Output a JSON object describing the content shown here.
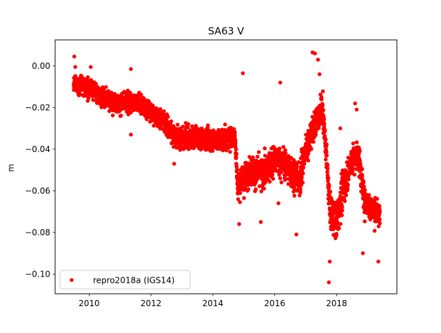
{
  "chart_data": {
    "type": "scatter",
    "title": "SA63 V",
    "xlabel": "",
    "ylabel": "m",
    "xlim": [
      2008.9,
      2019.95
    ],
    "ylim": [
      -0.1095,
      0.0125
    ],
    "xticks": [
      2010,
      2012,
      2014,
      2016,
      2018
    ],
    "xtick_labels": [
      "2010",
      "2012",
      "2014",
      "2016",
      "2018"
    ],
    "yticks": [
      0.0,
      -0.02,
      -0.04,
      -0.06,
      -0.08,
      -0.1
    ],
    "ytick_labels": [
      "0.00",
      "−0.02",
      "−0.04",
      "−0.06",
      "−0.08",
      "−0.10"
    ],
    "grid": false,
    "legend_position": "lower-left",
    "series": [
      {
        "name": "repro2018a (IGS14)",
        "color": "#ff0000",
        "marker": "circle",
        "trend_x": [
          2009.5,
          2010.0,
          2010.5,
          2011.0,
          2011.5,
          2012.0,
          2012.4,
          2012.8,
          2013.5,
          2014.2,
          2014.72,
          2014.8,
          2015.2,
          2015.6,
          2016.0,
          2016.4,
          2016.8,
          2017.0,
          2017.3,
          2017.55,
          2017.8,
          2018.0,
          2018.2,
          2018.5,
          2018.7,
          2018.9,
          2019.1,
          2019.4
        ],
        "trend_y": [
          -0.0085,
          -0.0105,
          -0.015,
          -0.018,
          -0.017,
          -0.022,
          -0.026,
          -0.034,
          -0.034,
          -0.036,
          -0.034,
          -0.058,
          -0.05,
          -0.052,
          -0.045,
          -0.048,
          -0.055,
          -0.04,
          -0.028,
          -0.02,
          -0.07,
          -0.075,
          -0.06,
          -0.045,
          -0.042,
          -0.065,
          -0.068,
          -0.072
        ],
        "noise_sd": [
          0.004,
          0.0045,
          0.0045,
          0.0045,
          0.0045,
          0.0045,
          0.0045,
          0.005,
          0.005,
          0.005,
          0.005,
          0.006,
          0.007,
          0.007,
          0.007,
          0.007,
          0.008,
          0.007,
          0.006,
          0.007,
          0.008,
          0.008,
          0.008,
          0.007,
          0.007,
          0.007,
          0.006,
          0.006
        ],
        "point_count": 3400,
        "outliers": [
          [
            2009.52,
            0.0045
          ],
          [
            2009.55,
            -0.0005
          ],
          [
            2010.05,
            -0.0005
          ],
          [
            2011.35,
            -0.0015
          ],
          [
            2014.97,
            -0.0035
          ],
          [
            2016.18,
            -0.008
          ],
          [
            2017.22,
            0.0065
          ],
          [
            2017.3,
            0.006
          ],
          [
            2017.4,
            0.003
          ],
          [
            2017.45,
            -0.004
          ],
          [
            2017.75,
            -0.104
          ],
          [
            2017.78,
            -0.094
          ],
          [
            2018.6,
            -0.018
          ],
          [
            2018.65,
            -0.021
          ],
          [
            2018.12,
            -0.03
          ],
          [
            2019.35,
            -0.094
          ],
          [
            2014.85,
            -0.076
          ],
          [
            2015.55,
            -0.075
          ],
          [
            2016.7,
            -0.081
          ],
          [
            2012.75,
            -0.047
          ],
          [
            2011.35,
            -0.033
          ],
          [
            2013.05,
            -0.04
          ],
          [
            2016.12,
            -0.066
          ],
          [
            2018.85,
            -0.09
          ]
        ]
      }
    ]
  }
}
